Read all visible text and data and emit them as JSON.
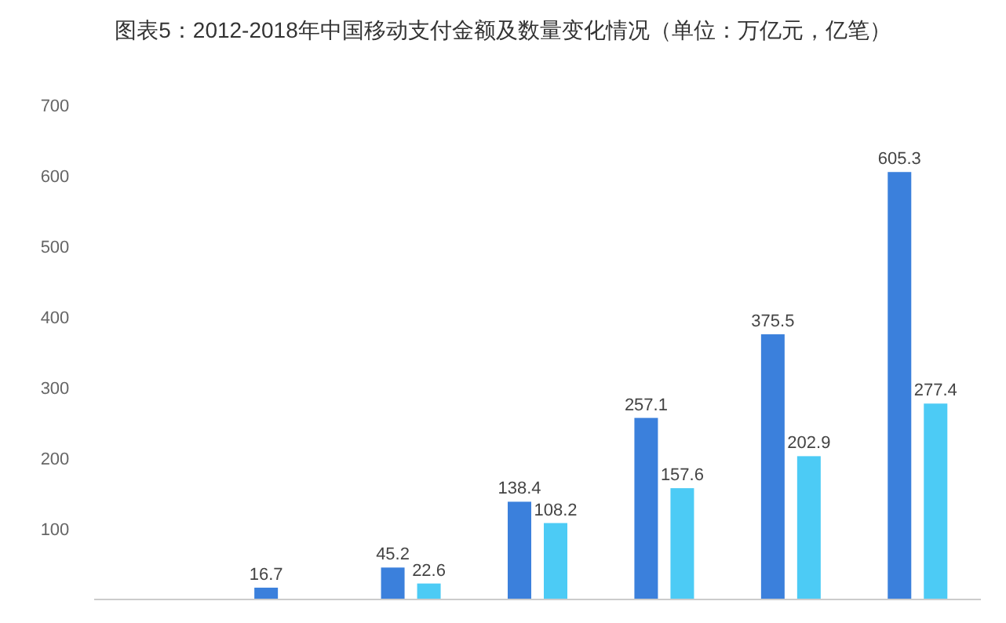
{
  "chart_data": {
    "type": "bar",
    "title": "图表5：2012-2018年中国移动支付金额及数量变化情况（单位：万亿元，亿笔）",
    "categories": [
      null,
      null,
      null,
      null,
      null,
      null,
      null
    ],
    "series": [
      {
        "color": "#3b80dc",
        "values": [
          null,
          16.7,
          45.2,
          138.4,
          257.1,
          375.5,
          605.3
        ]
      },
      {
        "color": "#4ccbf5",
        "values": [
          null,
          null,
          22.6,
          108.2,
          157.6,
          202.9,
          277.4
        ]
      }
    ],
    "ylim": [
      0,
      700
    ],
    "yticks": [
      100,
      200,
      300,
      400,
      500,
      600,
      700
    ],
    "data_labels": true,
    "grid": false
  }
}
